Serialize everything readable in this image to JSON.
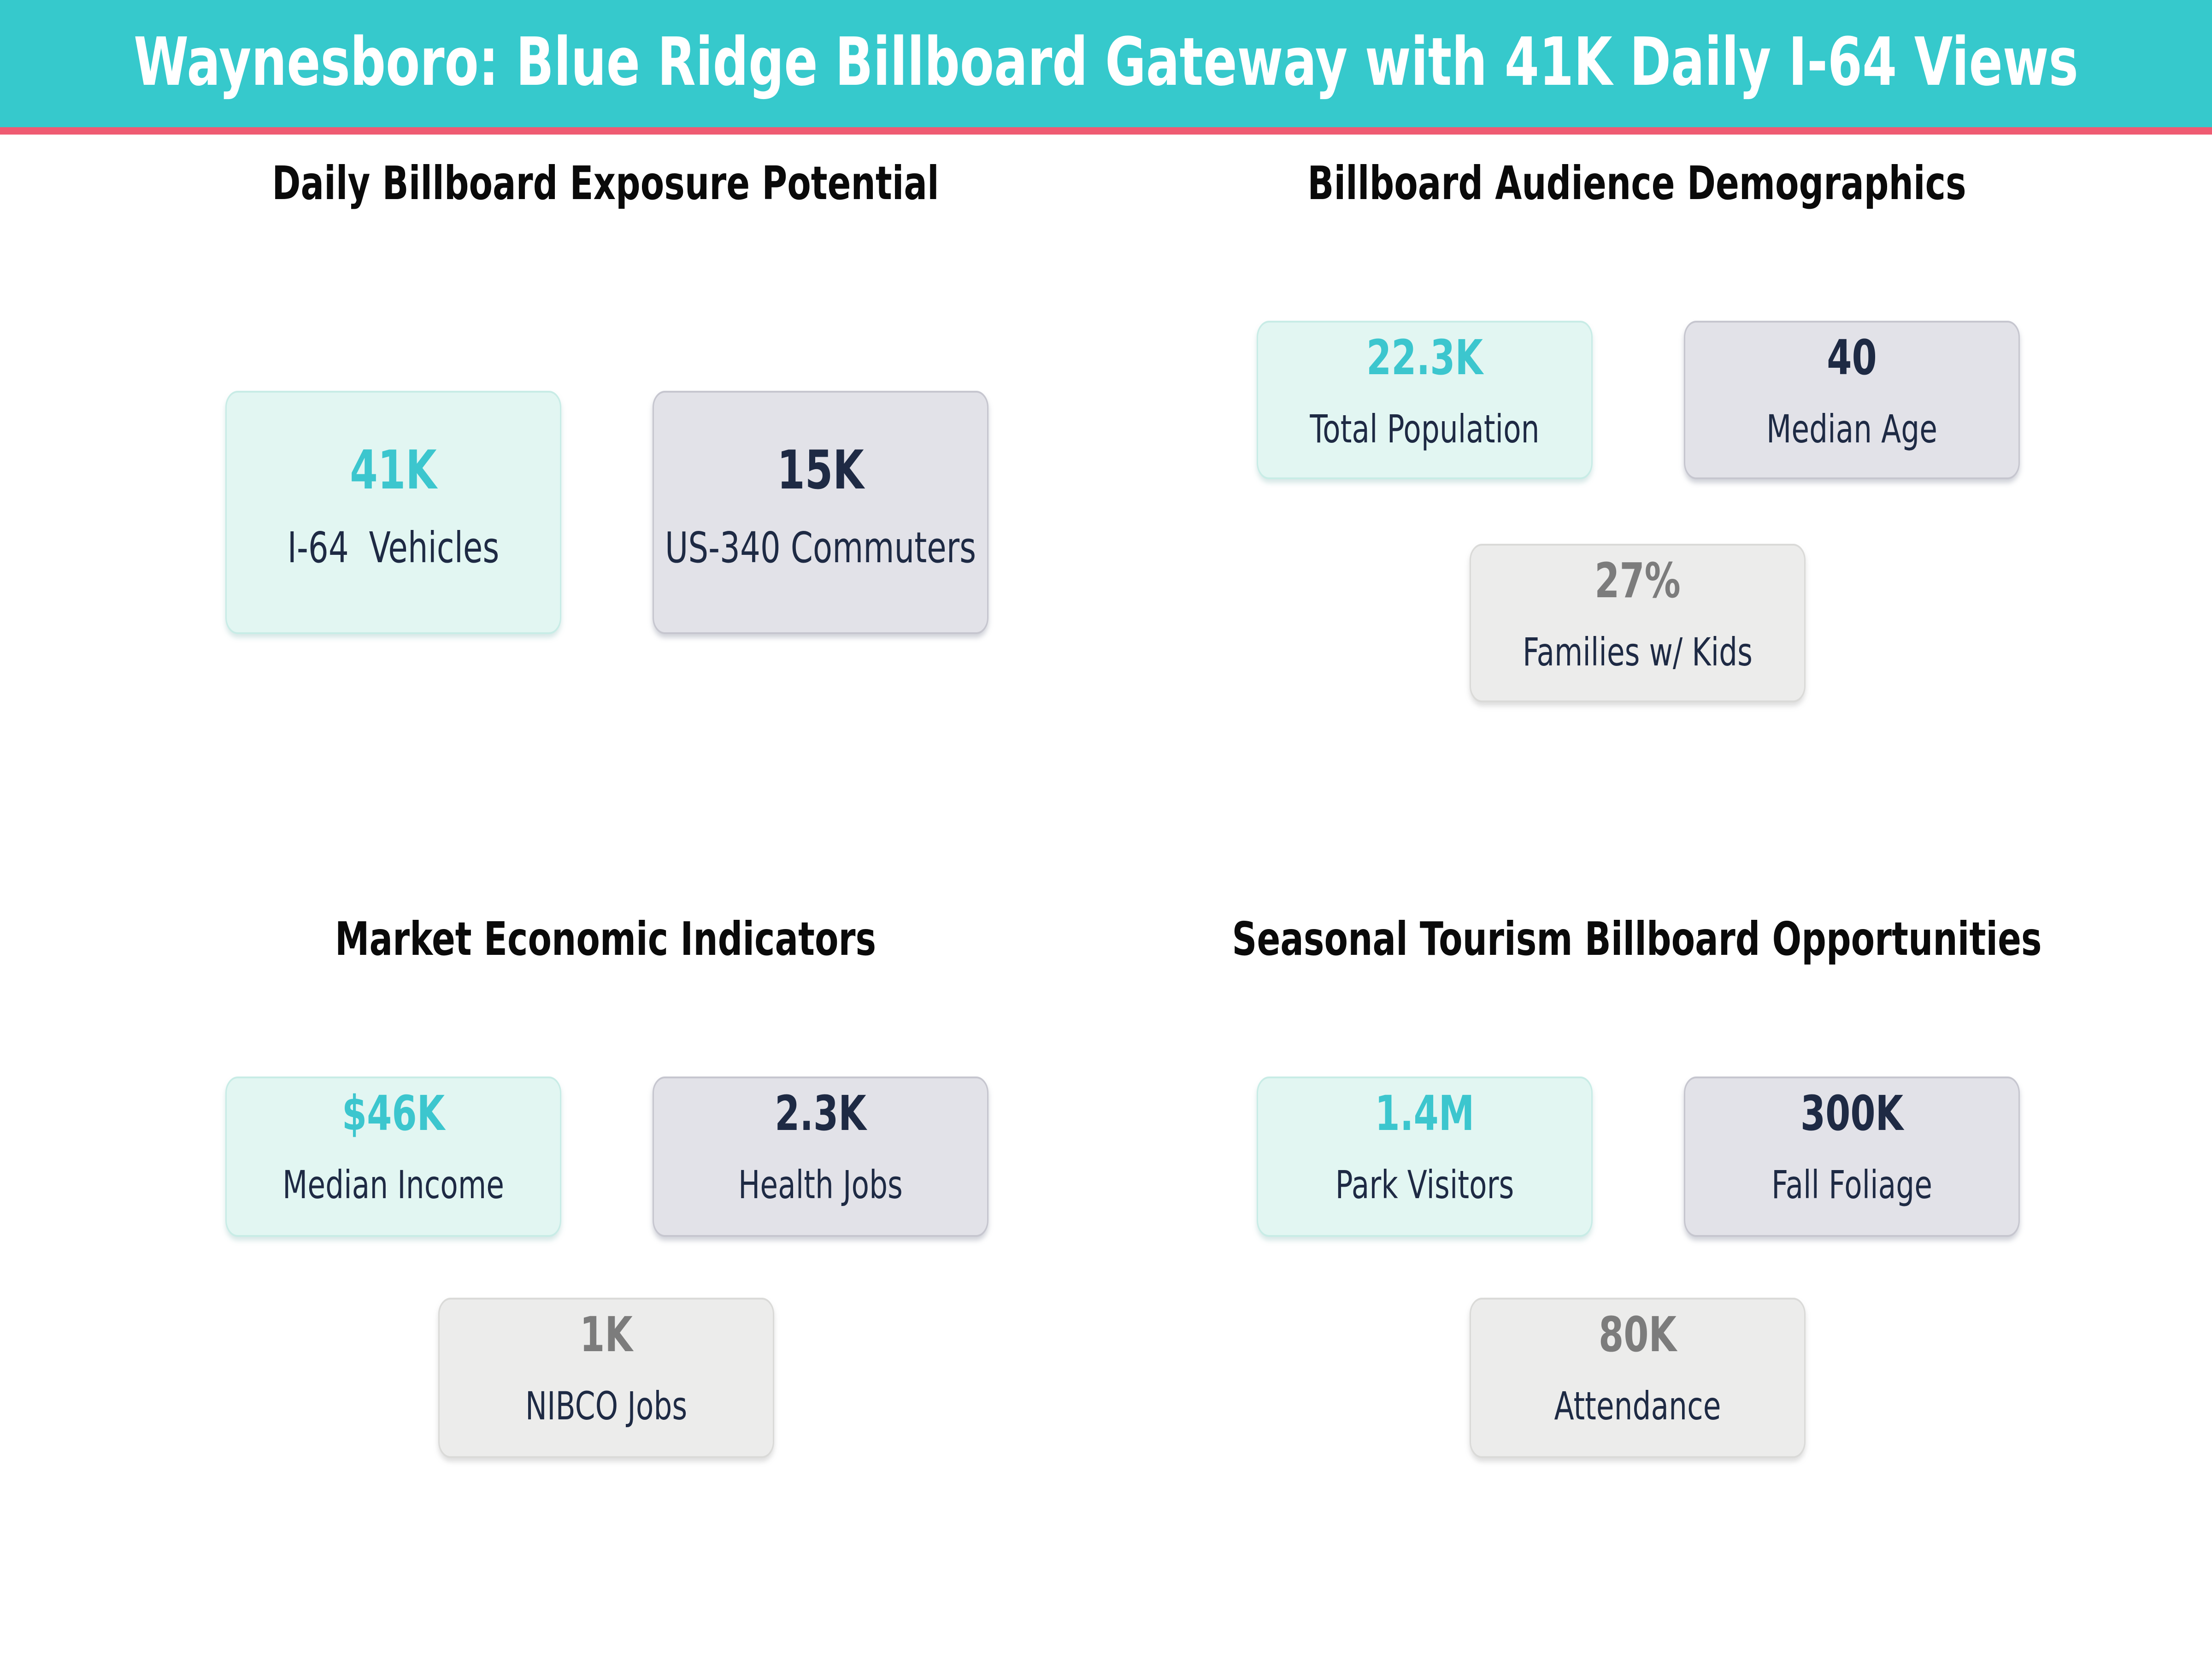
{
  "header": {
    "title": "Waynesboro: Blue Ridge Billboard Gateway with 41K Daily I-64 Views",
    "bg_color": "#36c9cc",
    "accent_bar_color": "#ef5b72",
    "text_color": "#ffffff"
  },
  "colors": {
    "teal_value": "#3cc6ce",
    "navy": "#1e2a44",
    "muted_value": "#7c7c7c",
    "mint_bg": "#e2f6f2",
    "mint_border": "#c8ece6",
    "gray_bg": "#e2e2e8",
    "gray_border": "#c6c6cf",
    "light_bg": "#ececeb",
    "light_border": "#dadad8",
    "section_title": "#0a0a0a",
    "page_bg": "#ffffff"
  },
  "sections": [
    {
      "title": "Daily Billboard Exposure Potential",
      "cards": [
        {
          "value": "41K",
          "label": "I-64  Vehicles",
          "style": "accent"
        },
        {
          "value": "15K",
          "label": "US-340 Commuters",
          "style": "gray"
        }
      ]
    },
    {
      "title": "Billboard Audience Demographics",
      "cards": [
        {
          "value": "22.3K",
          "label": "Total Population",
          "style": "accent"
        },
        {
          "value": "40",
          "label": "Median Age",
          "style": "gray"
        },
        {
          "value": "27%",
          "label": "Families w/ Kids",
          "style": "muted"
        }
      ]
    },
    {
      "title": "Market Economic Indicators",
      "cards": [
        {
          "value": "$46K",
          "label": "Median Income",
          "style": "accent"
        },
        {
          "value": "2.3K",
          "label": "Health Jobs",
          "style": "gray"
        },
        {
          "value": "1K",
          "label": "NIBCO Jobs",
          "style": "muted"
        }
      ]
    },
    {
      "title": "Seasonal Tourism Billboard Opportunities",
      "cards": [
        {
          "value": "1.4M",
          "label": "Park Visitors",
          "style": "accent"
        },
        {
          "value": "300K",
          "label": "Fall Foliage",
          "style": "gray"
        },
        {
          "value": "80K",
          "label": "Attendance",
          "style": "muted"
        }
      ]
    }
  ],
  "chart_data": [
    {
      "type": "table",
      "title": "Daily Billboard Exposure Potential",
      "columns": [
        "metric",
        "value"
      ],
      "rows": [
        [
          "I-64  Vehicles",
          "41K"
        ],
        [
          "US-340 Commuters",
          "15K"
        ]
      ]
    },
    {
      "type": "table",
      "title": "Billboard Audience Demographics",
      "columns": [
        "metric",
        "value"
      ],
      "rows": [
        [
          "Total Population",
          "22.3K"
        ],
        [
          "Median Age",
          "40"
        ],
        [
          "Families w/ Kids",
          "27%"
        ]
      ]
    },
    {
      "type": "table",
      "title": "Market Economic Indicators",
      "columns": [
        "metric",
        "value"
      ],
      "rows": [
        [
          "Median Income",
          "$46K"
        ],
        [
          "Health Jobs",
          "2.3K"
        ],
        [
          "NIBCO Jobs",
          "1K"
        ]
      ]
    },
    {
      "type": "table",
      "title": "Seasonal Tourism Billboard Opportunities",
      "columns": [
        "metric",
        "value"
      ],
      "rows": [
        [
          "Park Visitors",
          "1.4M"
        ],
        [
          "Fall Foliage",
          "300K"
        ],
        [
          "Attendance",
          "80K"
        ]
      ]
    }
  ]
}
